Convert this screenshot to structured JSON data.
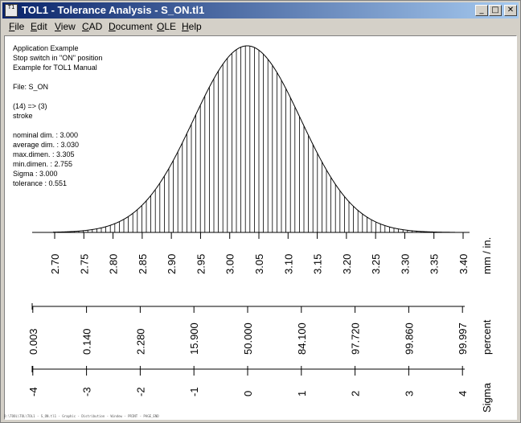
{
  "window": {
    "title": "TOL1 - Tolerance Analysis  -  S_ON.tl1",
    "icon_label": "S-N\nTOL",
    "controls": {
      "minimize": "_",
      "maximize": "□",
      "close": "✕"
    }
  },
  "menu": [
    {
      "label": "File",
      "u": "F",
      "rest": "ile"
    },
    {
      "label": "Edit",
      "u": "E",
      "rest": "dit"
    },
    {
      "label": "View",
      "u": "V",
      "rest": "iew"
    },
    {
      "label": "CAD",
      "u": "C",
      "rest": "AD"
    },
    {
      "label": "Document",
      "u": "D",
      "rest": "ocument"
    },
    {
      "label": "OLE",
      "u": "O",
      "rest": "LE"
    },
    {
      "label": "Help",
      "u": "H",
      "rest": "elp"
    }
  ],
  "info": {
    "lines": [
      "Application Example",
      "Stop switch in \"ON\" position",
      "Example for TOL1 Manual",
      "",
      "File: S_ON",
      "",
      "(14) => (3)",
      "stroke",
      "",
      "nominal dim. : 3.000",
      "average dim. : 3.030",
      "max.dimen. : 3.305",
      "min.dimen. : 2.755",
      "Sigma : 3.000",
      "tolerance : 0.551"
    ]
  },
  "chart_data": {
    "type": "area",
    "distribution": "normal",
    "mean": 3.03,
    "sigma_value": 0.0918,
    "x_range": [
      2.65,
      3.4
    ],
    "hatching": "vertical lines",
    "axes": [
      {
        "unit_label": "mm / in.",
        "ticks": [
          "2.70",
          "2.75",
          "2.80",
          "2.85",
          "2.90",
          "2.95",
          "3.00",
          "3.05",
          "3.10",
          "3.15",
          "3.20",
          "3.25",
          "3.30",
          "3.35",
          "3.40"
        ],
        "tick_values": [
          2.7,
          2.75,
          2.8,
          2.85,
          2.9,
          2.95,
          3.0,
          3.05,
          3.1,
          3.15,
          3.2,
          3.25,
          3.3,
          3.35,
          3.4
        ]
      },
      {
        "unit_label": "percent",
        "ticks": [
          "0.003",
          "0.140",
          "2.280",
          "15.900",
          "50.000",
          "84.100",
          "97.720",
          "99.860",
          "99.997"
        ],
        "sigma_positions": [
          -4,
          -3,
          -2,
          -1,
          0,
          1,
          2,
          3,
          4
        ]
      },
      {
        "unit_label": "Sigma",
        "ticks": [
          "-4",
          "-3",
          "-2",
          "-1",
          "0",
          "1",
          "2",
          "3",
          "4"
        ],
        "sigma_positions": [
          -4,
          -3,
          -2,
          -1,
          0,
          1,
          2,
          3,
          4
        ]
      }
    ]
  },
  "status_strip": "D:\\TOOL\\TOL\\TOL1 - S_ON.tl1 - Graphic - Distribution - Window - PRINT - PAGE_END"
}
